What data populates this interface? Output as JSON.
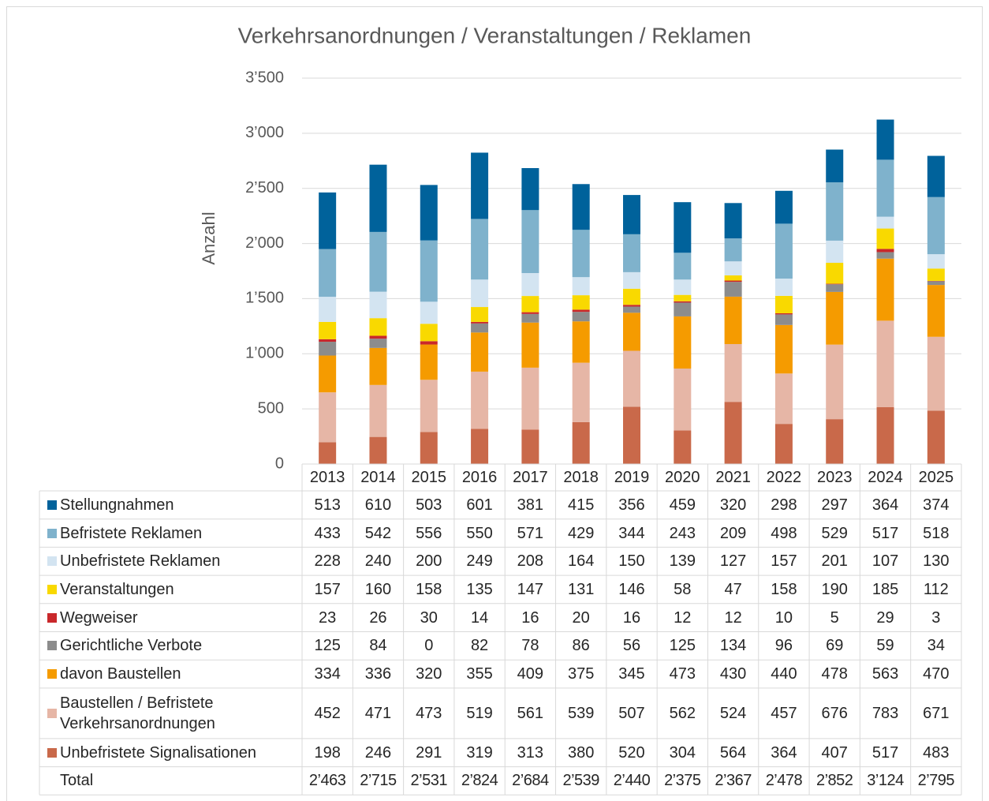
{
  "chart_data": {
    "type": "stacked_bar",
    "title": "Verkehrsanordnungen / Veranstaltungen / Reklamen",
    "y_label": "Anzahl",
    "categories": [
      "2013",
      "2014",
      "2015",
      "2016",
      "2017",
      "2018",
      "2019",
      "2020",
      "2021",
      "2022",
      "2023",
      "2024",
      "2025"
    ],
    "ylim": [
      0,
      3500
    ],
    "yticks": [
      0,
      500,
      {
        "value": 1000,
        "label": "1’000"
      },
      {
        "value": 1500,
        "label": "1’500"
      },
      {
        "value": 2000,
        "label": "2’000"
      },
      {
        "value": 2500,
        "label": "2’500"
      },
      {
        "value": 3000,
        "label": "3’000"
      },
      {
        "value": 3500,
        "label": "3’500"
      }
    ],
    "grid": true,
    "series": [
      {
        "name": "Stellungnahmen",
        "color": "#00629b",
        "values": [
          513,
          610,
          503,
          601,
          381,
          415,
          356,
          459,
          320,
          298,
          297,
          364,
          374
        ]
      },
      {
        "name": "Befristete Reklamen",
        "color": "#7fb2cc",
        "values": [
          433,
          542,
          556,
          550,
          571,
          429,
          344,
          243,
          209,
          498,
          529,
          517,
          518
        ]
      },
      {
        "name": "Unbefristete Reklamen",
        "color": "#d3e4f1",
        "values": [
          228,
          240,
          200,
          249,
          208,
          164,
          150,
          139,
          127,
          157,
          201,
          107,
          130
        ]
      },
      {
        "name": "Veranstaltungen",
        "color": "#f9d900",
        "values": [
          157,
          160,
          158,
          135,
          147,
          131,
          146,
          58,
          47,
          158,
          190,
          185,
          112
        ]
      },
      {
        "name": "Wegweiser",
        "color": "#c9282b",
        "values": [
          23,
          26,
          30,
          14,
          16,
          20,
          16,
          12,
          12,
          10,
          5,
          29,
          3
        ]
      },
      {
        "name": "Gerichtliche Verbote",
        "color": "#8c8c8c",
        "values": [
          125,
          84,
          0,
          82,
          78,
          86,
          56,
          125,
          134,
          96,
          69,
          59,
          34
        ]
      },
      {
        "name": "davon Baustellen",
        "color": "#f59b00",
        "values": [
          334,
          336,
          320,
          355,
          409,
          375,
          345,
          473,
          430,
          440,
          478,
          563,
          470
        ]
      },
      {
        "name": "Baustellen / Befristete Verkehrsanordnungen",
        "color": "#e6b6a6",
        "values": [
          452,
          471,
          473,
          519,
          561,
          539,
          507,
          562,
          524,
          457,
          676,
          783,
          671
        ]
      },
      {
        "name": "Unbefristete Signalisationen",
        "color": "#c9694a",
        "values": [
          198,
          246,
          291,
          319,
          313,
          380,
          520,
          304,
          564,
          364,
          407,
          517,
          483
        ]
      }
    ],
    "total": {
      "name": "Total",
      "values": [
        2463,
        2715,
        2531,
        2824,
        2684,
        2539,
        2440,
        2375,
        2367,
        2478,
        2852,
        3124,
        2795
      ],
      "value_labels": [
        "2’463",
        "2’715",
        "2’531",
        "2’824",
        "2’684",
        "2’539",
        "2’440",
        "2’375",
        "2’367",
        "2’478",
        "2’852",
        "3’124",
        "2’795"
      ]
    }
  }
}
